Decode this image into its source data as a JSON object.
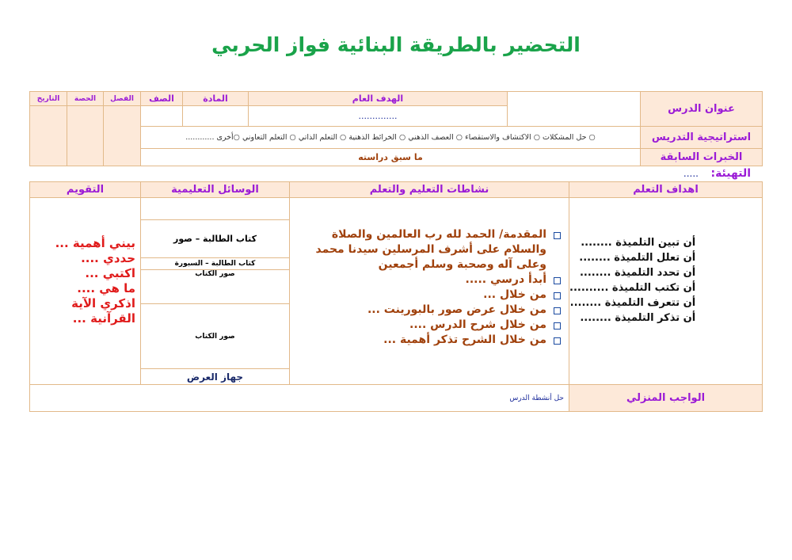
{
  "title": "التحضير بالطريقة البنائية فواز الحربي",
  "top_table": {
    "lesson_title_label": "عنوان الدرس",
    "general_goal_label": "الهدف العام",
    "general_goal_value": "..............",
    "subject_label": "المادة",
    "grade_label": "الصف",
    "class_label": "الفصل",
    "period_label": "الحصة",
    "date_label": "التاريخ",
    "strategy_label": "استراتيجية  التدريس",
    "strategies": "○ حل المشكلات  ○ الاكتشاف والاستقصاء  ○ العصف الذهني  ○ الخرائط الذهنية  ○ التعلم  الذاتي  ○ التعلم التعاوني  ○أخرى ............",
    "prior_label": "الخبرات السابقة",
    "prior_value": "ما سبق دراسته"
  },
  "warmup": {
    "label": "التهيئة:",
    "value": "....."
  },
  "main_table": {
    "headers": [
      "اهداف التعلم",
      "نشاطات التعليم والتعلم",
      "الوسائل التعليمية",
      "التقويم"
    ],
    "objectives": [
      "أن تبين التلميذة ........",
      "أن تعلل التلميذة ........",
      "أن تحدد التلميذة ........",
      "أن تكتب التلميذة ..........",
      "أن تتعرف التلميذة ........",
      "أن تذكر التلميذة ........"
    ],
    "activities": [
      "المقدمة/ الحمد لله رب العالمين والصلاة والسلام على أشرف المرسلين سيدنا محمد وعلى آله وصحبة وسلم أجمعين",
      "أبدأ درسي .....",
      "من خلال ...",
      "من خلال عرض صور بالبورينت ...",
      "من خلال شرح الدرس ....",
      "من خلال الشرح تذكر أهمية ..."
    ],
    "aids": [
      "",
      "كتاب الطالبة –  صور",
      "كتاب الطالبة – السبورة",
      "صور الكتاب",
      "صور الكتاب",
      "جهاز العرض"
    ],
    "evaluation": [
      "بيني أهمية ...",
      "حددي ....",
      "اكتبي ...",
      "ما هي ....",
      "اذكري الآية القرآنية ..."
    ],
    "homework_label": "الواجب المنزلي",
    "homework_value": "حل أنشطة الدرس"
  }
}
